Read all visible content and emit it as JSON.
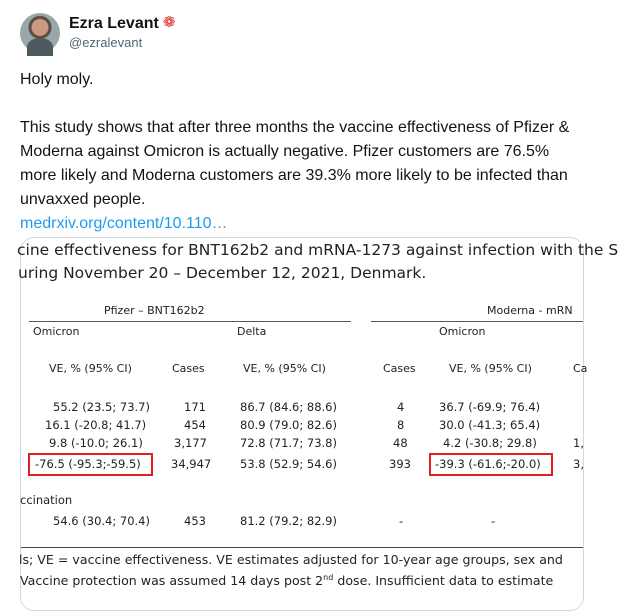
{
  "author": {
    "name": "Ezra Levant",
    "handle": "@ezralevant",
    "flag_icon": "canada-maple-leaf-icon",
    "flag_color": "#e0241b"
  },
  "tweet": {
    "line1": "Holy moly.",
    "body": "This study shows that after three months the vaccine effectiveness of Pfizer & Moderna against Omicron is actually negative. Pfizer customers are 76.5% more likely and Moderna customers are 39.3% more likely to be infected than unvaxxed people.",
    "link": "medrxiv.org/content/10.110…",
    "link_color": "#1d9bf0"
  },
  "table_image": {
    "title_line1": "cine effectiveness for BNT162b2 and mRNA-1273 against infection with the S",
    "title_line2": "uring November 20 – December 12, 2021, Denmark.",
    "group_pfizer": "Pfizer – BNT162b2",
    "group_moderna": "Moderna - mRN",
    "sub_omicron": "Omicron",
    "sub_delta": "Delta",
    "sub_omicron2": "Omicron",
    "col_ve1": "VE, % (95% CI)",
    "col_cases1": "Cases",
    "col_ve2": "VE, % (95% CI)",
    "col_cases2": "Cases",
    "col_ve3": "VE, % (95% CI)",
    "col_trunc": "Ca",
    "rows": [
      {
        "a": "55.2 (23.5; 73.7)",
        "b": "171",
        "c": "86.7 (84.6; 88.6)",
        "d": "4",
        "e": "36.7 (-69.9; 76.4)",
        "f": ""
      },
      {
        "a": "16.1 (-20.8; 41.7)",
        "b": "454",
        "c": "80.9 (79.0; 82.6)",
        "d": "8",
        "e": "30.0 (-41.3; 65.4)",
        "f": ""
      },
      {
        "a": "9.8 (-10.0; 26.1)",
        "b": "3,177",
        "c": "72.8 (71.7; 73.8)",
        "d": "48",
        "e": "4.2 (-30.8; 29.8)",
        "f": "1,"
      },
      {
        "a": "-76.5 (-95.3;-59.5)",
        "b": "34,947",
        "c": "53.8 (52.9; 54.6)",
        "d": "393",
        "e": "-39.3 (-61.6;-20.0)",
        "f": "3,"
      }
    ],
    "section_label": "ccination",
    "section_row": {
      "a": "54.6 (30.4; 70.4)",
      "b": "453",
      "c": "81.2 (79.2; 82.9)",
      "d": "-",
      "e": "-"
    },
    "footnote1": "ls; VE = vaccine effectiveness. VE estimates adjusted for 10-year age groups, sex and",
    "footnote2a": "Vaccine protection was assumed 14 days post 2",
    "footnote2sup": "nd",
    "footnote2b": " dose. Insufficient data to estimate",
    "highlight_color": "#e31e24"
  }
}
